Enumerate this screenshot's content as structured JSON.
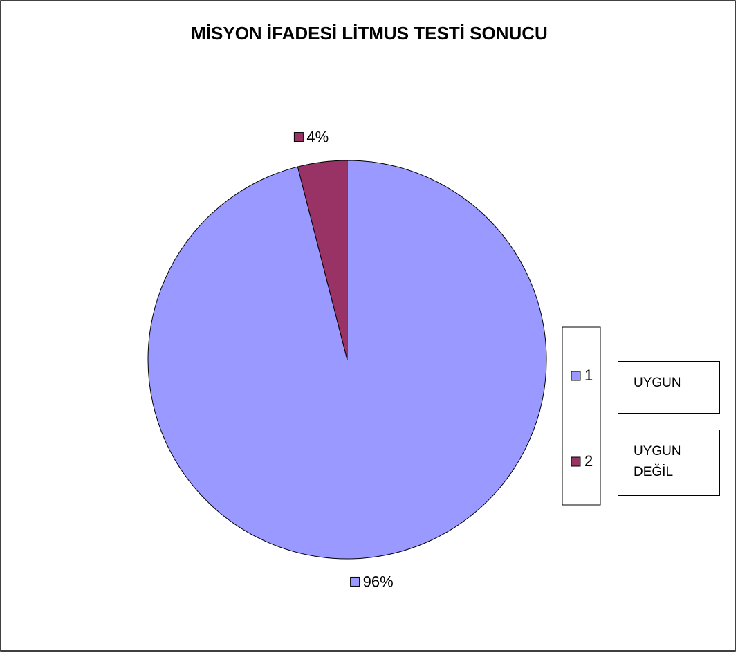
{
  "chart_data": {
    "type": "pie",
    "title": "MİSYON İFADESİ  LİTMUS TESTİ SONUCU",
    "categories": [
      "1",
      "2"
    ],
    "values": [
      96,
      4
    ],
    "value_labels": [
      "96%",
      "4%"
    ],
    "colors": [
      "#9999ff",
      "#993366"
    ],
    "annotations": [
      "UYGUN",
      "UYGUN DEĞİL"
    ]
  }
}
